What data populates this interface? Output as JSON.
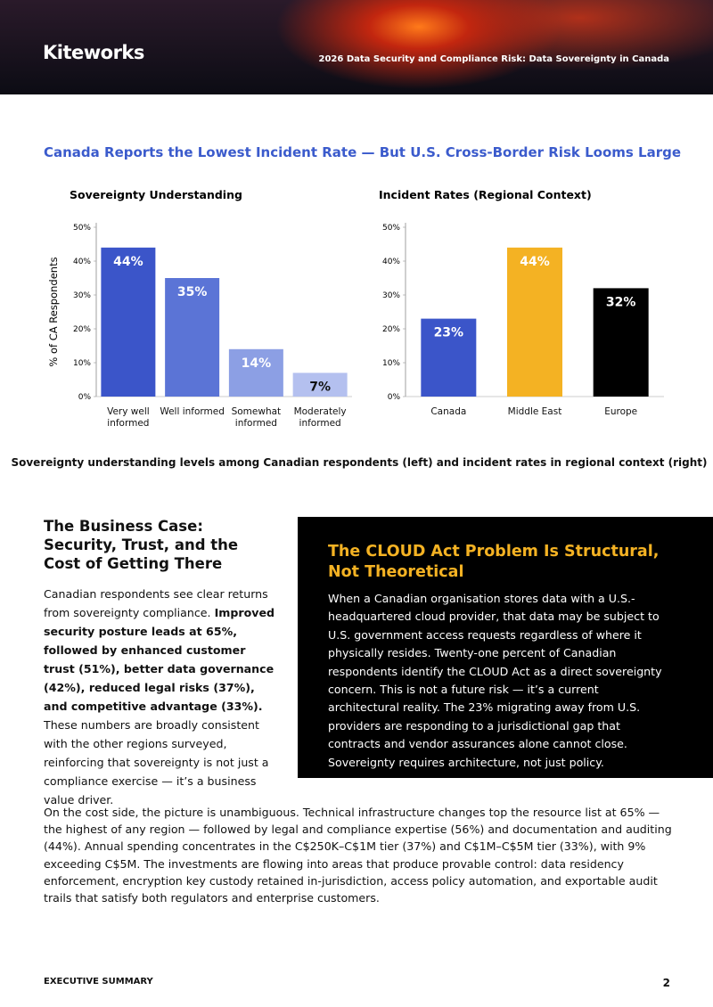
{
  "header": {
    "logo": "Kiteworks",
    "report_title": "2026 Data Security and Compliance Risk: Data Sovereignty in Canada"
  },
  "section_title": "Canada Reports the Lowest Incident Rate — But U.S. Cross-Border Risk Looms Large",
  "chart_data": [
    {
      "type": "bar",
      "title": "Sovereignty Understanding",
      "y_label": "% of CA Respondents",
      "categories": [
        "Very well informed",
        "Well informed",
        "Somewhat informed",
        "Moderately informed"
      ],
      "values": [
        44,
        35,
        14,
        7
      ],
      "value_labels": [
        "44%",
        "35%",
        "14%",
        "7%"
      ],
      "colors": [
        "#3b55c9",
        "#5b74d6",
        "#8c9fe4",
        "#b4c0ef"
      ],
      "label_colors": [
        "#ffffff",
        "#ffffff",
        "#ffffff",
        "#111111"
      ],
      "ylim": [
        0,
        50
      ],
      "yticks": [
        {
          "value": 0,
          "label": "0%"
        },
        {
          "value": 10,
          "label": "10%"
        },
        {
          "value": 20,
          "label": "20%"
        },
        {
          "value": 30,
          "label": "30%"
        },
        {
          "value": 40,
          "label": "40%"
        },
        {
          "value": 50,
          "label": "50%"
        }
      ]
    },
    {
      "type": "bar",
      "title": "Incident Rates (Regional Context)",
      "categories": [
        "Canada",
        "Middle East",
        "Europe"
      ],
      "values": [
        23,
        44,
        32
      ],
      "value_labels": [
        "23%",
        "44%",
        "32%"
      ],
      "colors": [
        "#3b55c9",
        "#f4b223",
        "#000000"
      ],
      "label_colors": [
        "#ffffff",
        "#ffffff",
        "#ffffff"
      ],
      "ylim": [
        0,
        50
      ],
      "yticks": [
        {
          "value": 0,
          "label": "0%"
        },
        {
          "value": 10,
          "label": "10%"
        },
        {
          "value": 20,
          "label": "20%"
        },
        {
          "value": 30,
          "label": "30%"
        },
        {
          "value": 40,
          "label": "40%"
        },
        {
          "value": 50,
          "label": "50%"
        }
      ]
    }
  ],
  "caption": "Sovereignty understanding levels among Canadian respondents (left) and incident rates in regional context (right)",
  "left": {
    "heading": "The Business Case: Security, Trust, and the Cost of Getting There",
    "paragraph": [
      {
        "text": "Canadian respondents see clear returns from sovereignty compliance. ",
        "bold": false
      },
      {
        "text": "Improved security posture leads at 65%, followed by enhanced customer trust (51%), better data governance (42%), reduced legal risks (37%), and competitive advantage (33%).",
        "bold": true
      },
      {
        "text": " These numbers are broadly consistent with the other regions surveyed, reinforcing that sovereignty is not just a compliance exercise — it’s a business value driver.",
        "bold": false
      }
    ]
  },
  "callout": {
    "heading": "The CLOUD Act Problem Is Structural, Not Theoretical",
    "body": "When a Canadian organisation stores data with a U.S.-headquartered cloud provider, that data may be subject to U.S. government access requests regardless of where it physically resides. Twenty-one percent of Canadian respondents identify the CLOUD Act as a direct sovereignty concern. This is not a future risk — it’s a current architectural reality. The 23% migrating away from U.S. providers are responding to a jurisdictional gap that contracts and vendor assurances alone cannot close. Sovereignty requires architecture, not just policy."
  },
  "body": "On the cost side, the picture is unambiguous. Technical infrastructure changes top the resource list at 65% — the highest of any region — followed by legal and compliance expertise (56%) and documentation and auditing (44%). Annual spending concentrates in the C$250K–C$1M tier (37%) and C$1M–C$5M tier (33%), with 9% exceeding C$5M. The investments are flowing into areas that produce provable control: data residency enforcement, encryption key custody retained in-jurisdiction, access policy automation, and exportable audit trails that satisfy both regulators and enterprise customers.",
  "footer": {
    "label": "EXECUTIVE SUMMARY",
    "page": "2"
  }
}
